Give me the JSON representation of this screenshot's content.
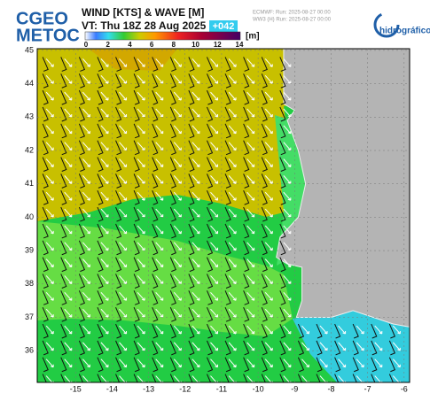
{
  "header": {
    "logo_line1": "CGEO",
    "logo_line2": "METOC",
    "title": "WIND [KTS] & WAVE [M]",
    "valid_time": "VT: Thu 18Z 28 Aug 2025",
    "lead": "+042",
    "model_line1": "ECMWF: Run: 2025-08-27 00:00",
    "model_line2": "WW3 (H) Run: 2025-08-27 00:00",
    "partner": "hidrográfico"
  },
  "colorbar": {
    "ticks": [
      0,
      2,
      4,
      6,
      8,
      10,
      12,
      14
    ],
    "unit": "[m]"
  },
  "map": {
    "lon_range": [
      -16.05,
      -5.85
    ],
    "lat_range": [
      35.05,
      45.05
    ],
    "lon_ticks": [
      -15,
      -14,
      -13,
      -12,
      -11,
      -10,
      -9,
      -8,
      -7,
      -6
    ],
    "lat_ticks": [
      36,
      37,
      38,
      39,
      40,
      41,
      42,
      43,
      44,
      45
    ]
  }
}
